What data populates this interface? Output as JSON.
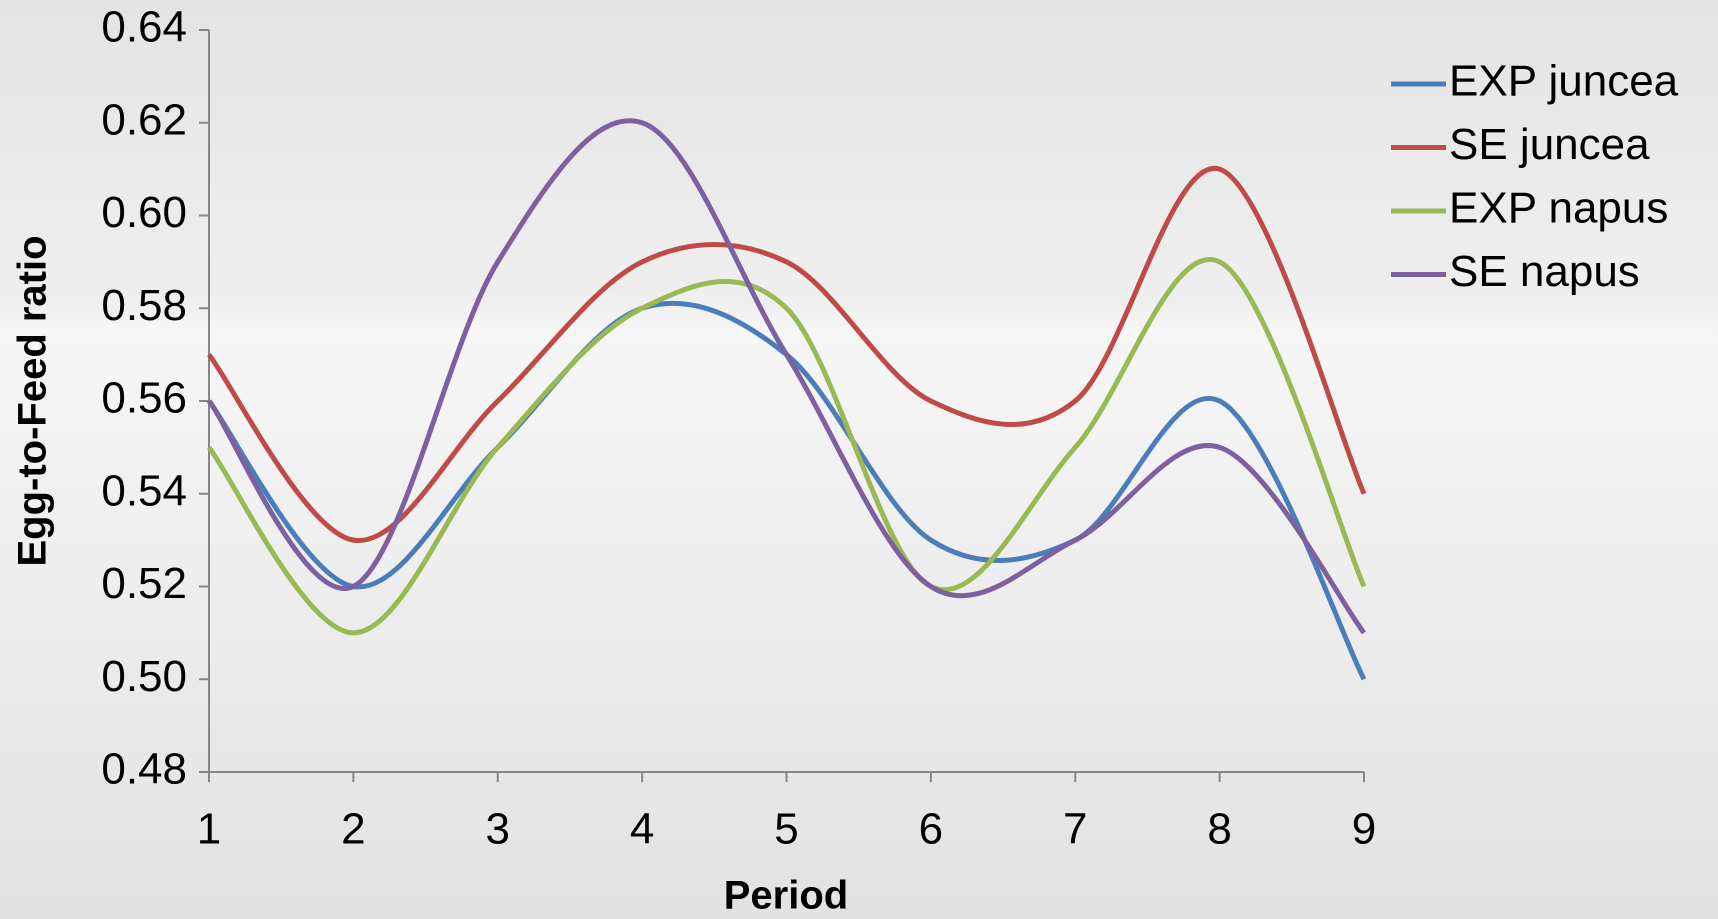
{
  "chart_data": {
    "type": "line",
    "x_label": "Period",
    "y_label": "Egg-to-Feed ratio",
    "x": [
      1,
      2,
      3,
      4,
      5,
      6,
      7,
      8,
      9
    ],
    "xlim": [
      1,
      9
    ],
    "xticks": [
      1,
      2,
      3,
      4,
      5,
      6,
      7,
      8,
      9
    ],
    "ylim": [
      0.48,
      0.64
    ],
    "yticks": [
      0.48,
      {
        "value": 0.5,
        "label": "0.50"
      },
      0.52,
      0.54,
      0.56,
      0.58,
      {
        "value": 0.6,
        "label": "0.60"
      },
      0.62,
      0.64
    ],
    "smooth": true,
    "legend": "right",
    "series": [
      {
        "name": "EXP juncea",
        "color": "#4a7ebb",
        "values": [
          0.56,
          0.52,
          0.55,
          0.58,
          0.57,
          0.53,
          0.53,
          0.56,
          0.5
        ]
      },
      {
        "name": "SE juncea",
        "color": "#be4b48",
        "values": [
          0.57,
          0.53,
          0.56,
          0.59,
          0.59,
          0.56,
          0.56,
          0.61,
          0.54
        ]
      },
      {
        "name": "EXP napus",
        "color": "#98b954",
        "values": [
          0.55,
          0.51,
          0.55,
          0.58,
          0.58,
          0.52,
          0.55,
          0.59,
          0.52
        ]
      },
      {
        "name": "SE napus",
        "color": "#7d60a0",
        "values": [
          0.56,
          0.52,
          0.59,
          0.62,
          0.57,
          0.52,
          0.53,
          0.55,
          0.51
        ]
      }
    ]
  }
}
